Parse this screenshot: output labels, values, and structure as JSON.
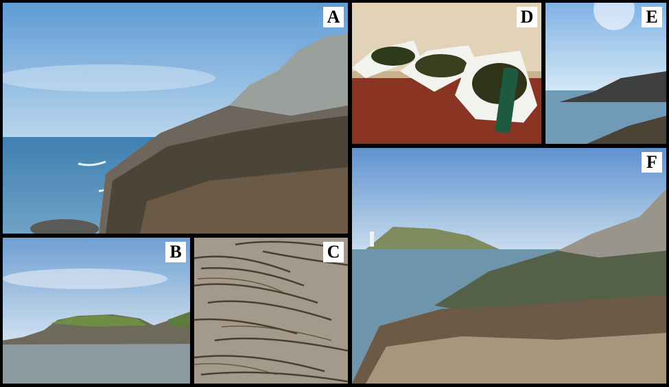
{
  "panels": {
    "a": {
      "label": "A",
      "scene": "rocky-coastline"
    },
    "b": {
      "label": "B",
      "scene": "island-across-sea"
    },
    "c": {
      "label": "C",
      "scene": "seaweed-on-rock-closeup"
    },
    "d": {
      "label": "D",
      "scene": "seaweed-samples-in-trays"
    },
    "e": {
      "label": "E",
      "scene": "sunny-coast"
    },
    "f": {
      "label": "F",
      "scene": "rocky-shore-with-lighthouse-headland"
    }
  }
}
